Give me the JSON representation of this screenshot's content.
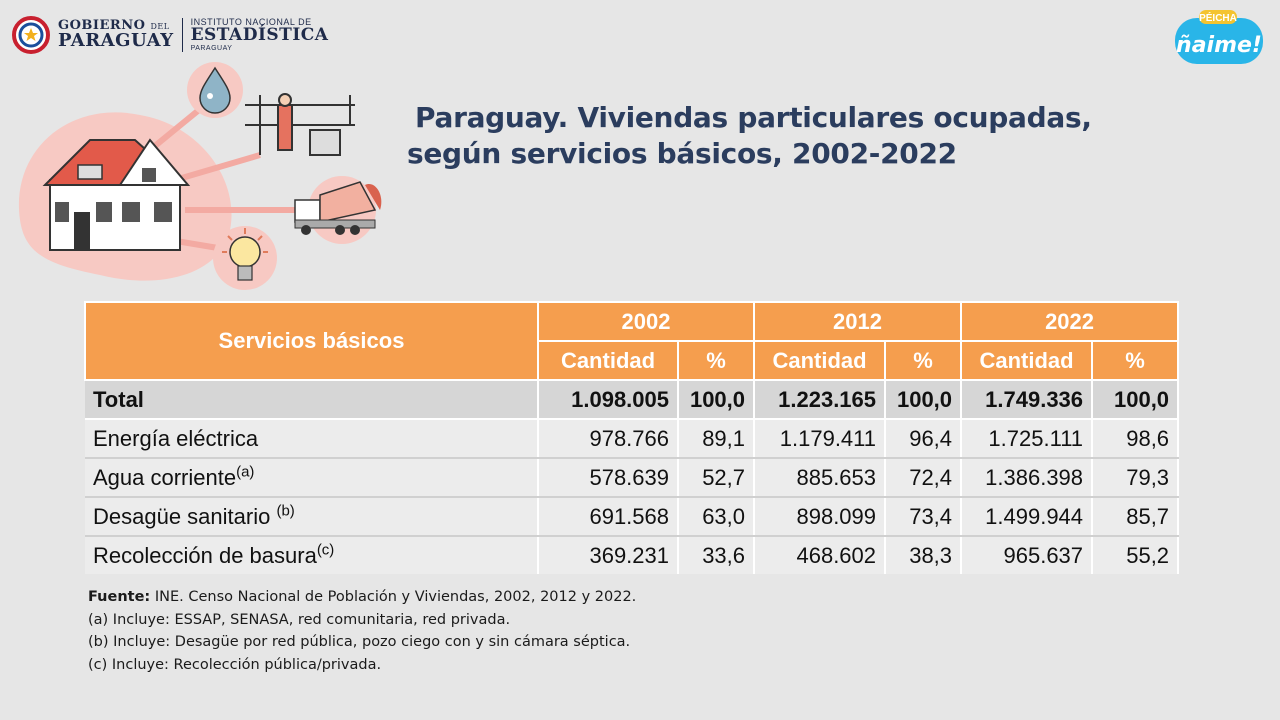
{
  "logo": {
    "gob_line1": "GOBIERNO",
    "gob_line1_small": "DEL",
    "gob_line2": "PARAGUAY",
    "ine_line1": "INSTITUTO NACIONAL DE",
    "ine_line2": "ESTADÍSTICA",
    "ine_line3": "PARAGUAY"
  },
  "badge": {
    "small": "PÉICHA",
    "big": "ñaime!"
  },
  "title": {
    "line1": "Paraguay. Viviendas particulares ocupadas,",
    "line2": "según servicios básicos, 2002-2022"
  },
  "table": {
    "row_header": "Servicios básicos",
    "years": [
      "2002",
      "2012",
      "2022"
    ],
    "sub_headers": [
      "Cantidad",
      "%"
    ],
    "rows": [
      {
        "label": "Total",
        "note": "",
        "values": [
          "1.098.005",
          "100,0",
          "1.223.165",
          "100,0",
          "1.749.336",
          "100,0"
        ]
      },
      {
        "label": "Energía eléctrica",
        "note": "",
        "values": [
          "978.766",
          "89,1",
          "1.179.411",
          "96,4",
          "1.725.111",
          "98,6"
        ]
      },
      {
        "label": "Agua corriente",
        "note": "(a)",
        "values": [
          "578.639",
          "52,7",
          "885.653",
          "72,4",
          "1.386.398",
          "79,3"
        ]
      },
      {
        "label": "Desagüe sanitario",
        "note": "(b)",
        "values": [
          "691.568",
          "63,0",
          "898.099",
          "73,4",
          "1.499.944",
          "85,7"
        ]
      },
      {
        "label": "Recolección de basura",
        "note": "(c)",
        "values": [
          "369.231",
          "33,6",
          "468.602",
          "38,3",
          "965.637",
          "55,2"
        ]
      }
    ]
  },
  "notes": {
    "source_label": "Fuente:",
    "source_text": " INE. Censo Nacional de Población y Viviendas, 2002, 2012 y 2022.",
    "a": "(a) Incluye: ESSAP, SENASA, red comunitaria, red privada.",
    "b": "(b) Incluye: Desagüe por red pública, pozo ciego con y sin cámara séptica.",
    "c": "(c) Incluye: Recolección pública/privada."
  },
  "colors": {
    "header_orange": "#f59e4e",
    "title_blue": "#2b3d5e",
    "accent_pink": "#f7c9c3"
  },
  "icons": [
    "paraguay-seal-icon",
    "house-icon",
    "water-drop-icon",
    "plumber-icon",
    "garbage-truck-icon",
    "light-bulb-icon"
  ]
}
